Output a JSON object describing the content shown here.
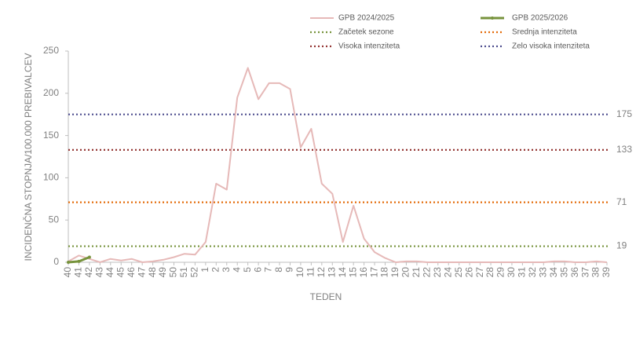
{
  "chart_data": {
    "type": "line",
    "ylabel": "INCIDENČNA  STOPNJA/100.000  PREBIVALCEV",
    "xlabel": "TEDEN",
    "categories": [
      "40",
      "41",
      "42",
      "43",
      "44",
      "45",
      "46",
      "47",
      "48",
      "49",
      "50",
      "51",
      "52",
      "1",
      "2",
      "3",
      "4",
      "5",
      "6",
      "7",
      "8",
      "9",
      "10",
      "11",
      "12",
      "13",
      "14",
      "15",
      "16",
      "17",
      "18",
      "19",
      "20",
      "21",
      "22",
      "23",
      "24",
      "25",
      "26",
      "27",
      "28",
      "29",
      "30",
      "31",
      "32",
      "33",
      "34",
      "35",
      "36",
      "37",
      "38",
      "39"
    ],
    "series": [
      {
        "name": "GPB 2024/2025",
        "color": "#e6b9b8",
        "width": 2,
        "marker": false,
        "values": [
          1,
          8,
          4,
          0,
          4,
          2,
          4,
          0,
          1,
          3,
          6,
          10,
          9,
          24,
          93,
          86,
          195,
          230,
          193,
          212,
          212,
          205,
          136,
          158,
          93,
          81,
          24,
          67,
          28,
          12,
          5,
          0,
          1,
          1,
          0,
          0,
          0,
          0,
          0,
          0,
          0,
          0,
          0,
          0,
          0,
          0,
          1,
          1,
          0,
          0,
          1,
          0
        ]
      },
      {
        "name": "GPB 2025/2026",
        "color": "#77933c",
        "width": 3,
        "marker": true,
        "values": [
          0,
          1,
          6,
          null,
          null,
          null,
          null,
          null,
          null,
          null,
          null,
          null,
          null,
          null,
          null,
          null,
          null,
          null,
          null,
          null,
          null,
          null,
          null,
          null,
          null,
          null,
          null,
          null,
          null,
          null,
          null,
          null,
          null,
          null,
          null,
          null,
          null,
          null,
          null,
          null,
          null,
          null,
          null,
          null,
          null,
          null,
          null,
          null,
          null,
          null,
          null,
          null
        ]
      }
    ],
    "thresholds": [
      {
        "name": "Začetek sezone",
        "value": 19,
        "color": "#77933c"
      },
      {
        "name": "Srednja intenziteta",
        "value": 71,
        "color": "#e46c0a"
      },
      {
        "name": "Visoka intenziteta",
        "value": 133,
        "color": "#953735"
      },
      {
        "name": "Zelo visoka intenziteta",
        "value": 175,
        "color": "#4f4f8f"
      }
    ],
    "ylim": [
      0,
      250
    ],
    "yticks": [
      0,
      50,
      100,
      150,
      200,
      250
    ]
  }
}
